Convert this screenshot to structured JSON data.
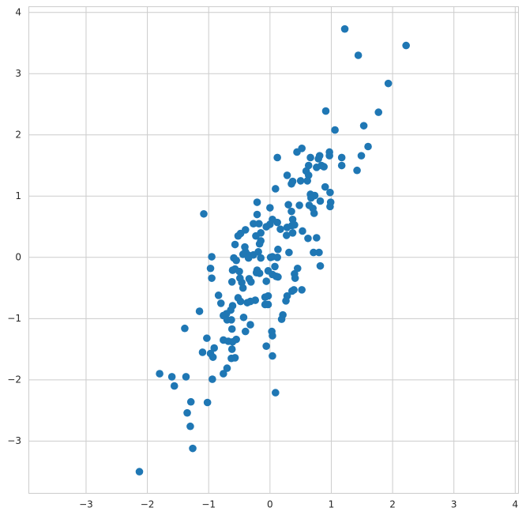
{
  "chart_data": {
    "type": "scatter",
    "color": "#1f77b4",
    "grid": true,
    "xlim": [
      -3.94,
      4.06
    ],
    "ylim": [
      -3.86,
      4.1
    ],
    "xticks": [
      {
        "value": -3,
        "label": "−3"
      },
      {
        "value": -2,
        "label": "−2"
      },
      {
        "value": -1,
        "label": "−1"
      },
      0,
      1,
      2,
      3,
      4
    ],
    "yticks": [
      {
        "value": -3,
        "label": "−3"
      },
      {
        "value": -2,
        "label": "−2"
      },
      {
        "value": -1,
        "label": "−1"
      },
      0,
      1,
      2,
      3,
      4
    ],
    "x": [
      1.22,
      1.44,
      2.22,
      1.93,
      0.91,
      1.77,
      1.06,
      1.53,
      1.6,
      1.49,
      1.42,
      1.17,
      1.17,
      0.97,
      0.97,
      0.52,
      0.44,
      0.12,
      0.09,
      0.28,
      0.37,
      0.35,
      0.5,
      0.59,
      0.63,
      0.76,
      0.84,
      0.88,
      0.79,
      0.81,
      0.66,
      0.63,
      0.61,
      0.66,
      0.67,
      0.64,
      0.73,
      0.82,
      0.9,
      0.98,
      0.99,
      0.98,
      0.72,
      0.7,
      0.48,
      0.3,
      0.35,
      0.37,
      0.36,
      0.4,
      0.37,
      0.53,
      0.62,
      0.76,
      0.8,
      0.71,
      0.82,
      0.45,
      0.4,
      0.41,
      0.52,
      0.36,
      0.39,
      0.28,
      0.26,
      0.31,
      0.27,
      0.28,
      0.17,
      0.12,
      0.04,
      0.13,
      0.04,
      0.12,
      0.01,
      0.08,
      0.1,
      0.13,
      0.04,
      -0.03,
      -0.06,
      -0.03,
      -0.08,
      -0.03,
      -0.08,
      0.21,
      0.19,
      0.03,
      0.04,
      -0.06,
      0.04,
      0.09,
      0.0,
      -0.06,
      0.0,
      -0.21,
      -0.21,
      -0.18,
      -0.27,
      -0.15,
      -0.23,
      -0.15,
      -0.17,
      -0.15,
      -0.19,
      -0.27,
      -0.4,
      -0.36,
      -0.35,
      -0.44,
      -0.41,
      -0.48,
      -0.52,
      -0.4,
      -0.57,
      -0.59,
      -0.55,
      -0.57,
      -0.61,
      -0.5,
      -0.49,
      -0.62,
      -0.46,
      -0.44,
      -0.34,
      -0.31,
      -0.21,
      -0.22,
      -0.17,
      -0.24,
      -0.32,
      -0.37,
      -0.48,
      -0.52,
      -0.61,
      -0.64,
      -0.71,
      -0.76,
      -0.7,
      -0.63,
      -0.62,
      -0.43,
      -0.4,
      -0.32,
      -0.8,
      -0.84,
      -0.76,
      -0.68,
      -0.61,
      -0.55,
      -0.62,
      -0.63,
      -0.57,
      -0.7,
      -0.76,
      -0.97,
      -0.95,
      -0.95,
      -1.08,
      -1.15,
      -1.03,
      -0.91,
      -0.97,
      -0.93,
      -1.1,
      -0.94,
      -1.02,
      -1.39,
      -1.37,
      -1.8,
      -1.6,
      -1.56,
      -1.29,
      -1.35,
      -1.3,
      -1.26,
      -2.13
    ],
    "y": [
      3.73,
      3.3,
      3.46,
      2.84,
      2.39,
      2.37,
      2.08,
      2.15,
      1.81,
      1.66,
      1.42,
      1.63,
      1.5,
      1.72,
      1.66,
      1.78,
      1.72,
      1.63,
      1.12,
      1.34,
      1.24,
      1.2,
      1.25,
      1.41,
      1.5,
      1.47,
      1.5,
      1.48,
      1.61,
      1.66,
      1.63,
      1.34,
      1.25,
      1.03,
      0.97,
      0.85,
      1.01,
      0.92,
      1.15,
      1.06,
      0.9,
      0.83,
      0.72,
      0.8,
      0.85,
      0.86,
      0.75,
      0.62,
      0.52,
      0.53,
      0.4,
      0.43,
      0.31,
      0.32,
      0.08,
      0.08,
      -0.14,
      -0.18,
      -0.27,
      -0.34,
      -0.53,
      -0.55,
      -0.53,
      -0.63,
      -0.71,
      0.08,
      0.36,
      0.49,
      0.46,
      0.57,
      0.62,
      0.13,
      0.01,
      0.0,
      0.0,
      -0.15,
      -0.31,
      -0.32,
      -0.28,
      -0.22,
      -0.39,
      -0.63,
      -0.65,
      -0.77,
      -0.77,
      -0.94,
      -1.01,
      -1.21,
      -1.28,
      -1.45,
      -1.61,
      -2.21,
      0.54,
      0.5,
      0.81,
      0.9,
      0.7,
      0.55,
      0.55,
      0.4,
      0.35,
      0.27,
      0.22,
      -0.01,
      0.09,
      0.04,
      0.09,
      0.04,
      -0.01,
      0.05,
      0.17,
      0.39,
      0.35,
      0.45,
      0.21,
      -0.01,
      -0.05,
      -0.19,
      -0.21,
      -0.23,
      -0.34,
      -0.4,
      -0.41,
      -0.5,
      -0.35,
      -0.4,
      -0.21,
      -0.25,
      -0.26,
      -0.7,
      -0.72,
      -0.74,
      -0.72,
      -0.66,
      -0.79,
      -0.86,
      -0.92,
      -0.95,
      -1.02,
      -1.02,
      -1.17,
      -0.98,
      -1.21,
      -1.1,
      -0.75,
      -0.62,
      -1.35,
      -1.37,
      -1.38,
      -1.34,
      -1.5,
      -1.65,
      -1.64,
      -1.81,
      -1.9,
      -0.18,
      -0.34,
      0.01,
      0.71,
      -0.88,
      -1.32,
      -1.48,
      -1.57,
      -1.63,
      -1.55,
      -1.99,
      -2.37,
      -1.16,
      -1.95,
      -1.9,
      -1.95,
      -2.1,
      -2.36,
      -2.54,
      -2.76,
      -3.12,
      -3.5
    ]
  }
}
